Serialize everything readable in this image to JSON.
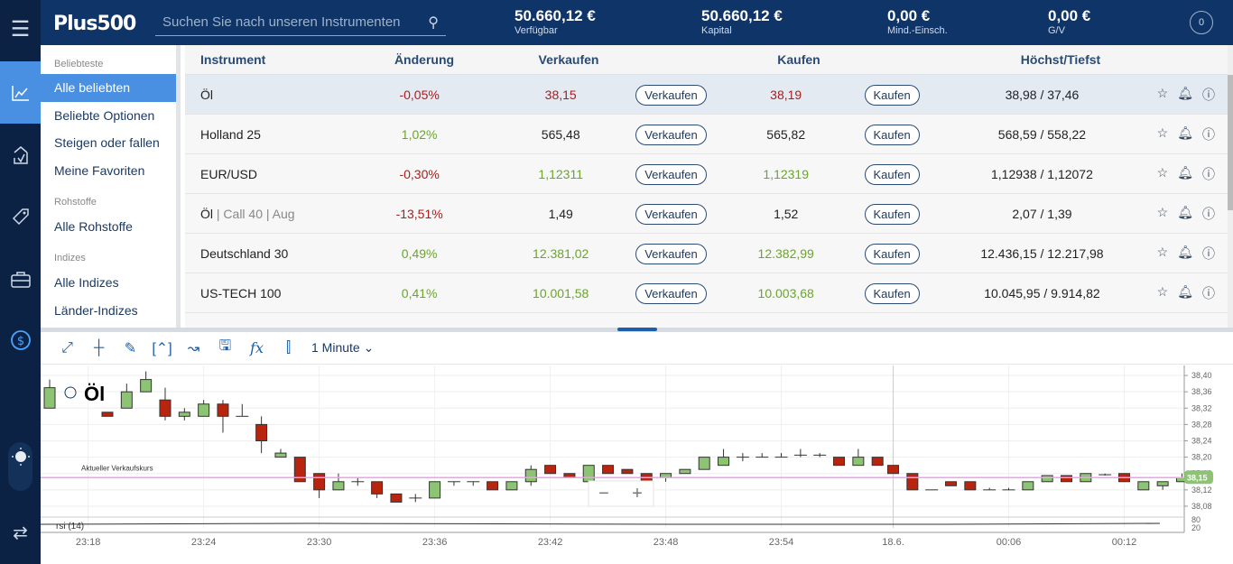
{
  "header": {
    "logo": "Plus500",
    "search_placeholder": "Suchen Sie nach unseren Instrumenten",
    "stats": [
      {
        "value": "50.660,12 €",
        "label": "Verfügbar"
      },
      {
        "value": "50.660,12 €",
        "label": "Kapital"
      },
      {
        "value": "0,00 €",
        "label": "Mind.-Einsch."
      },
      {
        "value": "0,00 €",
        "label": "G/V"
      }
    ],
    "avatar": "0"
  },
  "rail": [
    "menu-icon",
    "chart-line-icon",
    "transfer-icon",
    "tag-icon",
    "briefcase-icon",
    "dollar-icon",
    "theme-toggle-icon",
    "swap-icon"
  ],
  "sidebar": {
    "sections": [
      {
        "title": "Beliebteste",
        "items": [
          "Alle beliebten",
          "Beliebte Optionen",
          "Steigen oder fallen",
          "Meine Favoriten"
        ]
      },
      {
        "title": "Rohstoffe",
        "items": [
          "Alle Rohstoffe"
        ]
      },
      {
        "title": "Indizes",
        "items": [
          "Alle Indizes",
          "Länder-Indizes"
        ]
      }
    ]
  },
  "table": {
    "headers": [
      "Instrument",
      "Änderung",
      "Verkaufen",
      "Kaufen",
      "Höchst/Tiefst"
    ],
    "sell_label": "Verkaufen",
    "buy_label": "Kaufen",
    "rows": [
      {
        "name": "Öl",
        "sub": "",
        "change": "-0,05%",
        "sell": "38,15",
        "buy": "38,19",
        "hl": "38,98 / 37,46",
        "dir": "red",
        "pdir": "red"
      },
      {
        "name": "Holland 25",
        "sub": "",
        "change": "1,02%",
        "sell": "565,48",
        "buy": "565,82",
        "hl": "568,59 / 558,22",
        "dir": "grn",
        "pdir": ""
      },
      {
        "name": "EUR/USD",
        "sub": "",
        "change": "-0,30%",
        "sell": "1,12311",
        "buy": "1,12319",
        "hl": "1,12938 / 1,12072",
        "dir": "red",
        "pdir": "grn"
      },
      {
        "name": "Öl",
        "sub": " | Call 40 | Aug",
        "change": "-13,51%",
        "sell": "1,49",
        "buy": "1,52",
        "hl": "2,07 / 1,39",
        "dir": "red",
        "pdir": ""
      },
      {
        "name": "Deutschland 30",
        "sub": "",
        "change": "0,49%",
        "sell": "12.381,02",
        "buy": "12.382,99",
        "hl": "12.436,15 / 12.217,98",
        "dir": "grn",
        "pdir": "grn"
      },
      {
        "name": "US-TECH 100",
        "sub": "",
        "change": "0,41%",
        "sell": "10.001,58",
        "buy": "10.003,68",
        "hl": "10.045,95 / 9.914,82",
        "dir": "grn",
        "pdir": "grn"
      }
    ]
  },
  "chart_toolbar": {
    "timeframe": "1 Minute"
  },
  "chart_data": {
    "type": "candlestick",
    "title": "Öl",
    "current_label": "Aktueller Verkaufskurs",
    "current_price": 38.15,
    "current_price_label": "38,15",
    "ylim": [
      38.06,
      38.42
    ],
    "yticks": [
      "38,40",
      "38,36",
      "38,32",
      "38,28",
      "38,24",
      "38,20",
      "38,16",
      "38,12",
      "38,08"
    ],
    "ytick_values": [
      38.4,
      38.36,
      38.32,
      38.28,
      38.24,
      38.2,
      38.16,
      38.12,
      38.08
    ],
    "xticks": [
      "23:18",
      "23:24",
      "23:30",
      "23:36",
      "23:42",
      "23:48",
      "23:54",
      "18.6.",
      "00:06",
      "00:12"
    ],
    "rsi_label": "rsi (14)",
    "rsi_ticks": [
      "80",
      "20"
    ],
    "candles": [
      [
        "23:16",
        38.32,
        38.39,
        38.32,
        38.37
      ],
      [
        "23:19",
        38.31,
        38.31,
        38.3,
        38.3
      ],
      [
        "23:20",
        38.32,
        38.38,
        38.32,
        38.36
      ],
      [
        "23:21",
        38.36,
        38.41,
        38.36,
        38.39
      ],
      [
        "23:22",
        38.34,
        38.37,
        38.29,
        38.3
      ],
      [
        "23:23",
        38.3,
        38.32,
        38.29,
        38.31
      ],
      [
        "23:24",
        38.3,
        38.34,
        38.3,
        38.33
      ],
      [
        "23:25",
        38.33,
        38.34,
        38.26,
        38.3
      ],
      [
        "23:26",
        38.3,
        38.33,
        38.3,
        38.3
      ],
      [
        "23:27",
        38.28,
        38.3,
        38.21,
        38.24
      ],
      [
        "23:28",
        38.2,
        38.22,
        38.2,
        38.21
      ],
      [
        "23:29",
        38.2,
        38.2,
        38.14,
        38.14
      ],
      [
        "23:30",
        38.16,
        38.16,
        38.1,
        38.12
      ],
      [
        "23:31",
        38.12,
        38.16,
        38.12,
        38.14
      ],
      [
        "23:32",
        38.14,
        38.15,
        38.13,
        38.14
      ],
      [
        "23:33",
        38.14,
        38.14,
        38.1,
        38.11
      ],
      [
        "23:34",
        38.11,
        38.11,
        38.09,
        38.09
      ],
      [
        "23:35",
        38.1,
        38.11,
        38.09,
        38.1
      ],
      [
        "23:36",
        38.1,
        38.14,
        38.1,
        38.14
      ],
      [
        "23:37",
        38.14,
        38.14,
        38.13,
        38.14
      ],
      [
        "23:38",
        38.14,
        38.14,
        38.13,
        38.14
      ],
      [
        "23:39",
        38.14,
        38.14,
        38.12,
        38.12
      ],
      [
        "23:40",
        38.12,
        38.14,
        38.12,
        38.14
      ],
      [
        "23:41",
        38.14,
        38.18,
        38.13,
        38.17
      ],
      [
        "23:42",
        38.18,
        38.18,
        38.16,
        38.16
      ],
      [
        "23:43",
        38.16,
        38.16,
        38.15,
        38.15
      ],
      [
        "23:44",
        38.14,
        38.18,
        38.14,
        38.18
      ],
      [
        "23:45",
        38.18,
        38.18,
        38.16,
        38.16
      ],
      [
        "23:46",
        38.17,
        38.17,
        38.16,
        38.16
      ],
      [
        "23:47",
        38.16,
        38.16,
        38.14,
        38.14
      ],
      [
        "23:48",
        38.15,
        38.16,
        38.14,
        38.16
      ],
      [
        "23:49",
        38.16,
        38.17,
        38.16,
        38.17
      ],
      [
        "23:50",
        38.17,
        38.2,
        38.17,
        38.2
      ],
      [
        "23:51",
        38.18,
        38.22,
        38.18,
        38.2
      ],
      [
        "23:52",
        38.2,
        38.21,
        38.19,
        38.2
      ],
      [
        "23:53",
        38.2,
        38.21,
        38.2,
        38.2
      ],
      [
        "23:54",
        38.2,
        38.21,
        38.2,
        38.2
      ],
      [
        "23:55",
        38.205,
        38.22,
        38.2,
        38.205
      ],
      [
        "23:56",
        38.205,
        38.21,
        38.2,
        38.205
      ],
      [
        "23:57",
        38.2,
        38.2,
        38.18,
        38.18
      ],
      [
        "23:58",
        38.18,
        38.22,
        38.18,
        38.2
      ],
      [
        "23:59",
        38.2,
        38.2,
        38.18,
        38.18
      ],
      [
        "00:00",
        38.18,
        38.18,
        38.16,
        38.16
      ],
      [
        "00:01",
        38.16,
        38.16,
        38.12,
        38.12
      ],
      [
        "00:02",
        38.12,
        38.12,
        38.12,
        38.12
      ],
      [
        "00:03",
        38.14,
        38.14,
        38.13,
        38.13
      ],
      [
        "00:04",
        38.14,
        38.14,
        38.12,
        38.12
      ],
      [
        "00:05",
        38.12,
        38.125,
        38.12,
        38.12
      ],
      [
        "00:06",
        38.12,
        38.125,
        38.12,
        38.12
      ],
      [
        "00:07",
        38.12,
        38.14,
        38.12,
        38.14
      ],
      [
        "00:08",
        38.14,
        38.155,
        38.14,
        38.155
      ],
      [
        "00:09",
        38.155,
        38.155,
        38.14,
        38.14
      ],
      [
        "00:10",
        38.14,
        38.16,
        38.14,
        38.16
      ],
      [
        "00:11",
        38.157,
        38.16,
        38.155,
        38.157
      ],
      [
        "00:12",
        38.16,
        38.16,
        38.14,
        38.14
      ],
      [
        "00:13",
        38.12,
        38.14,
        38.12,
        38.14
      ],
      [
        "00:14",
        38.13,
        38.14,
        38.12,
        38.14
      ],
      [
        "00:15",
        38.14,
        38.16,
        38.14,
        38.15
      ]
    ]
  }
}
